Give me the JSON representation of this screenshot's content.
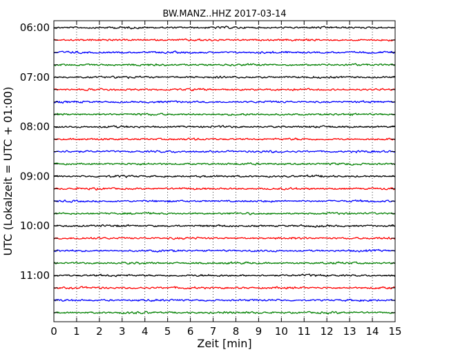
{
  "chart_data": {
    "type": "line",
    "title": "BW.MANZ..HHZ 2017-03-14",
    "xlabel": "Zeit  [min]",
    "ylabel": "UTC (Lokalzeit = UTC + 01:00)",
    "xlim": [
      0,
      15
    ],
    "x_ticks": [
      "0",
      "1",
      "2",
      "3",
      "4",
      "5",
      "6",
      "7",
      "8",
      "9",
      "10",
      "11",
      "12",
      "13",
      "14",
      "15"
    ],
    "grid": "vertical dotted",
    "y_hour_labels": [
      "06:00",
      "07:00",
      "08:00",
      "09:00",
      "10:00",
      "11:00"
    ],
    "trace_interval_minutes": 15,
    "trace_colors": [
      "#000000",
      "#ff0000",
      "#0000ff",
      "#008000"
    ],
    "traces": [
      {
        "start": "06:00"
      },
      {
        "start": "06:15"
      },
      {
        "start": "06:30"
      },
      {
        "start": "06:45"
      },
      {
        "start": "07:00"
      },
      {
        "start": "07:15"
      },
      {
        "start": "07:30"
      },
      {
        "start": "07:45"
      },
      {
        "start": "08:00"
      },
      {
        "start": "08:15"
      },
      {
        "start": "08:30"
      },
      {
        "start": "08:45"
      },
      {
        "start": "09:00"
      },
      {
        "start": "09:15"
      },
      {
        "start": "09:30"
      },
      {
        "start": "09:45"
      },
      {
        "start": "10:00"
      },
      {
        "start": "10:15"
      },
      {
        "start": "10:30"
      },
      {
        "start": "10:45"
      },
      {
        "start": "11:00"
      },
      {
        "start": "11:15"
      },
      {
        "start": "11:30"
      },
      {
        "start": "11:45"
      }
    ]
  }
}
